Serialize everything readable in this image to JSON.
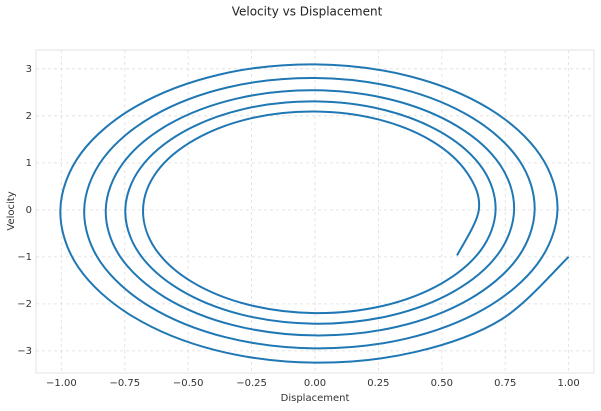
{
  "chart_data": {
    "type": "line",
    "title": "Velocity vs Displacement",
    "x_label": "Displacement",
    "y_label": "Velocity",
    "grid": true,
    "xlim": [
      -1.1,
      1.1
    ],
    "ylim": [
      -3.47,
      3.4
    ],
    "xticks": [
      {
        "value": -1,
        "label": "−1.00"
      },
      {
        "value": -0.75,
        "label": "−0.75"
      },
      {
        "value": -0.5,
        "label": "−0.50"
      },
      {
        "value": -0.25,
        "label": "−0.25"
      },
      {
        "value": 0,
        "label": "0.00"
      },
      {
        "value": 0.25,
        "label": "0.25"
      },
      {
        "value": 0.5,
        "label": "0.50"
      },
      {
        "value": 0.75,
        "label": "0.75"
      },
      {
        "value": 1,
        "label": "1.00"
      }
    ],
    "yticks": [
      {
        "value": -3,
        "label": "−3"
      },
      {
        "value": -2,
        "label": "−2"
      },
      {
        "value": -1,
        "label": "−1"
      },
      0,
      1,
      2,
      3
    ],
    "series": [
      {
        "color": "#1f77b4",
        "x": [
          1.0,
          0.736,
          0.396,
          0,
          -0.392,
          -0.718,
          -0.933,
          -1.004,
          -0.922,
          -0.701,
          -0.377,
          0,
          0.373,
          0.684,
          0.888,
          0.956,
          0.877,
          0.667,
          0.359,
          0,
          -0.355,
          -0.651,
          -0.846,
          -0.91,
          -0.835,
          -0.635,
          -0.342,
          0,
          0.338,
          0.62,
          0.805,
          0.866,
          0.796,
          0.605,
          0.326,
          0,
          -0.322,
          -0.59,
          -0.767,
          -0.825,
          -0.757,
          -0.576,
          -0.31,
          0,
          0.306,
          0.562,
          0.73,
          0.785,
          0.721,
          0.548,
          0.295,
          0,
          -0.292,
          -0.535,
          -0.695,
          -0.748,
          -0.687,
          -0.522,
          -0.281,
          0,
          0.278,
          0.51,
          0.662,
          0.712,
          0.654,
          0.497,
          0.268,
          0,
          -0.264,
          -0.485,
          -0.63,
          -0.678,
          -0.623,
          -0.473,
          -0.255,
          0,
          0.252,
          0.462,
          0.6,
          0.646,
          0.56
        ],
        "values": [
          -1.0,
          -2.326,
          -3.022,
          -3.25,
          -2.985,
          -2.27,
          -1.222,
          0,
          1.207,
          2.215,
          2.877,
          3.095,
          2.842,
          2.161,
          1.163,
          0,
          -1.149,
          -2.109,
          -2.74,
          -2.946,
          -2.706,
          -2.058,
          -1.108,
          0,
          1.094,
          2.008,
          2.608,
          2.805,
          2.577,
          1.959,
          1.055,
          0,
          -1.042,
          -1.912,
          -2.484,
          -2.671,
          -2.453,
          -1.866,
          -1.004,
          0,
          0.992,
          1.82,
          2.365,
          2.543,
          2.336,
          1.776,
          0.956,
          0,
          -0.945,
          -1.733,
          -2.252,
          -2.422,
          -2.224,
          -1.691,
          -0.911,
          0,
          0.899,
          1.65,
          2.144,
          2.306,
          2.118,
          1.61,
          0.867,
          0,
          -0.856,
          -1.571,
          -2.042,
          -2.196,
          -2.016,
          -1.533,
          -0.825,
          0,
          0.815,
          1.496,
          1.944,
          2.091,
          1.92,
          1.46,
          0.786,
          0,
          -0.97
        ]
      }
    ]
  }
}
